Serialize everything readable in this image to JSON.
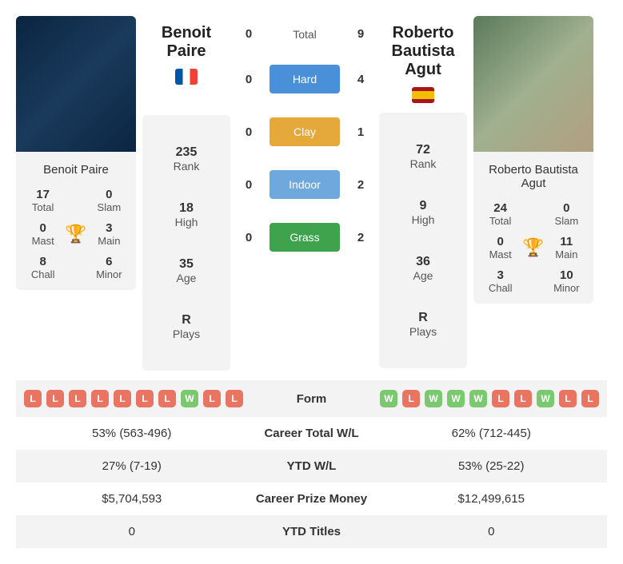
{
  "player1": {
    "name": "Benoit Paire",
    "titles_total": {
      "value": "17",
      "label": "Total"
    },
    "titles_slam": {
      "value": "0",
      "label": "Slam"
    },
    "titles_mast": {
      "value": "0",
      "label": "Mast"
    },
    "titles_main": {
      "value": "3",
      "label": "Main"
    },
    "titles_chall": {
      "value": "8",
      "label": "Chall"
    },
    "titles_minor": {
      "value": "6",
      "label": "Minor"
    },
    "rank": {
      "value": "235",
      "label": "Rank"
    },
    "high": {
      "value": "18",
      "label": "High"
    },
    "age": {
      "value": "35",
      "label": "Age"
    },
    "plays": {
      "value": "R",
      "label": "Plays"
    }
  },
  "player2": {
    "name": "Roberto Bautista Agut",
    "titles_total": {
      "value": "24",
      "label": "Total"
    },
    "titles_slam": {
      "value": "0",
      "label": "Slam"
    },
    "titles_mast": {
      "value": "0",
      "label": "Mast"
    },
    "titles_main": {
      "value": "11",
      "label": "Main"
    },
    "titles_chall": {
      "value": "3",
      "label": "Chall"
    },
    "titles_minor": {
      "value": "10",
      "label": "Minor"
    },
    "rank": {
      "value": "72",
      "label": "Rank"
    },
    "high": {
      "value": "9",
      "label": "High"
    },
    "age": {
      "value": "36",
      "label": "Age"
    },
    "plays": {
      "value": "R",
      "label": "Plays"
    }
  },
  "h2h": {
    "total": {
      "p1": "0",
      "label": "Total",
      "p2": "9"
    },
    "hard": {
      "p1": "0",
      "label": "Hard",
      "p2": "4",
      "color": "#4a90d9"
    },
    "clay": {
      "p1": "0",
      "label": "Clay",
      "p2": "1",
      "color": "#e5a83b"
    },
    "indoor": {
      "p1": "0",
      "label": "Indoor",
      "p2": "2",
      "color": "#6fa8dc"
    },
    "grass": {
      "p1": "0",
      "label": "Grass",
      "p2": "2",
      "color": "#3fa34d"
    }
  },
  "form1": [
    "L",
    "L",
    "L",
    "L",
    "L",
    "L",
    "L",
    "W",
    "L",
    "L"
  ],
  "form2": [
    "W",
    "L",
    "W",
    "W",
    "W",
    "L",
    "L",
    "W",
    "L",
    "L"
  ],
  "form_label": "Form",
  "table": {
    "career_wl": {
      "p1": "53% (563-496)",
      "label": "Career Total W/L",
      "p2": "62% (712-445)"
    },
    "ytd_wl": {
      "p1": "27% (7-19)",
      "label": "YTD W/L",
      "p2": "53% (25-22)"
    },
    "prize": {
      "p1": "$5,704,593",
      "label": "Career Prize Money",
      "p2": "$12,499,615"
    },
    "ytd_titles": {
      "p1": "0",
      "label": "YTD Titles",
      "p2": "0"
    }
  },
  "colors": {
    "win": "#7bc96f",
    "loss": "#e87461",
    "card_bg": "#f3f3f3"
  }
}
